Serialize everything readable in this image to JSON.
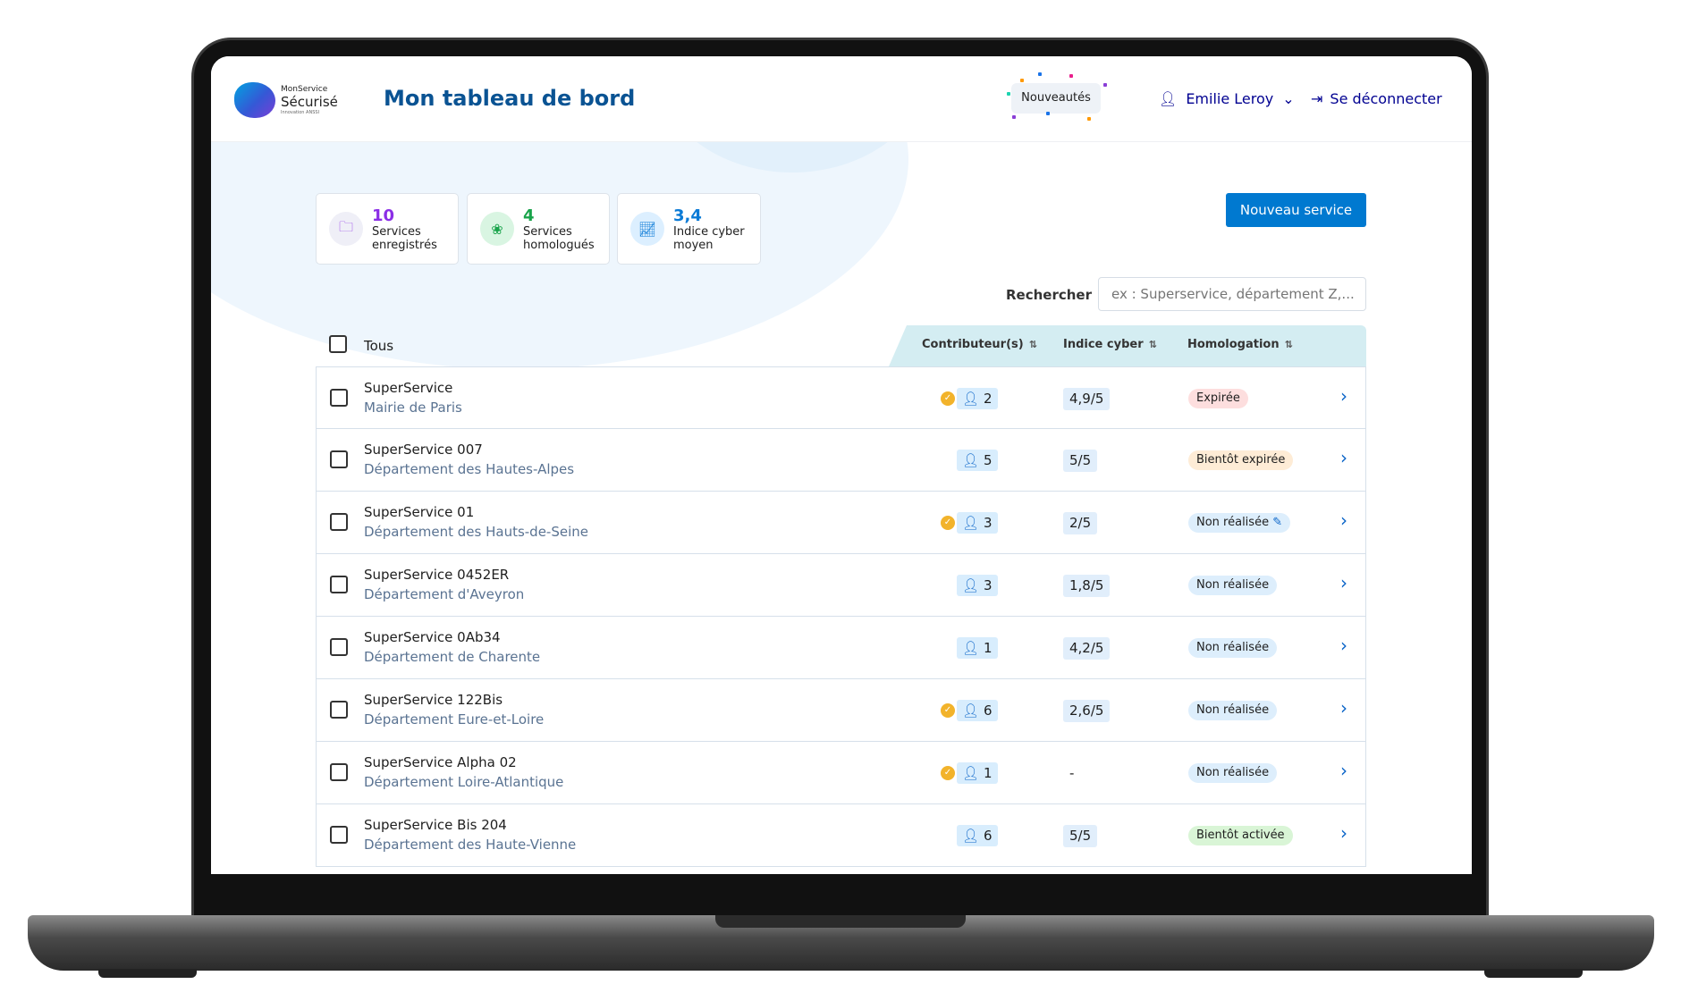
{
  "header": {
    "logo_line1": "MonService",
    "logo_line2": "Sécurisé",
    "logo_line3": "Innovation ANSSI",
    "title": "Mon tableau de bord",
    "news": "Nouveautés",
    "user": "Emilie Leroy",
    "logout": "Se déconnecter"
  },
  "stats": [
    {
      "value": "10",
      "label1": "Services",
      "label2": "enregistrés",
      "color": "#8b2ee6",
      "icon": "folder-check-icon"
    },
    {
      "value": "4",
      "label1": "Services",
      "label2": "homologués",
      "color": "#18a34a",
      "icon": "award-icon"
    },
    {
      "value": "3,4",
      "label1": "Indice cyber",
      "label2": "moyen",
      "color": "#0a7ad6",
      "icon": "chart-line-icon"
    }
  ],
  "new_service": "Nouveau service",
  "search": {
    "label": "Rechercher",
    "placeholder": "ex : Superservice, département Z,..."
  },
  "table": {
    "select_all": "Tous",
    "columns": [
      "Contributeur(s)",
      "Indice cyber",
      "Homologation"
    ],
    "rows": [
      {
        "name": "SuperService",
        "org": "Mairie de Paris",
        "owner_badge": true,
        "contributors": "2",
        "index": "4,9/5",
        "homologation": "Expirée",
        "status": "expired"
      },
      {
        "name": "SuperService 007",
        "org": "Département des Hautes-Alpes",
        "owner_badge": false,
        "contributors": "5",
        "index": "5/5",
        "homologation": "Bientôt expirée",
        "status": "soon-expired"
      },
      {
        "name": "SuperService 01",
        "org": "Département des Hauts-de-Seine",
        "owner_badge": true,
        "contributors": "3",
        "index": "2/5",
        "homologation": "Non réalisée",
        "status": "not-done-edit"
      },
      {
        "name": "SuperService 0452ER",
        "org": "Département d'Aveyron",
        "owner_badge": false,
        "contributors": "3",
        "index": "1,8/5",
        "homologation": "Non réalisée",
        "status": "not-done"
      },
      {
        "name": "SuperService 0Ab34",
        "org": "Département de Charente",
        "owner_badge": false,
        "contributors": "1",
        "index": "4,2/5",
        "homologation": "Non réalisée",
        "status": "not-done"
      },
      {
        "name": "SuperService 122Bis",
        "org": "Département Eure-et-Loire",
        "owner_badge": true,
        "contributors": "6",
        "index": "2,6/5",
        "homologation": "Non réalisée",
        "status": "not-done"
      },
      {
        "name": "SuperService Alpha 02",
        "org": "Département Loire-Atlantique",
        "owner_badge": true,
        "contributors": "1",
        "index": "-",
        "homologation": "Non réalisée",
        "status": "not-done"
      },
      {
        "name": "SuperService Bis 204",
        "org": "Département des Haute-Vienne",
        "owner_badge": false,
        "contributors": "6",
        "index": "5/5",
        "homologation": "Bientôt activée",
        "status": "soon-active"
      }
    ]
  },
  "status_colors": {
    "expired": "#fddede",
    "soon-expired": "#feecd6",
    "not-done": "#ddeefc",
    "not-done-edit": "#ddeefc",
    "soon-active": "#d9f5d6"
  }
}
